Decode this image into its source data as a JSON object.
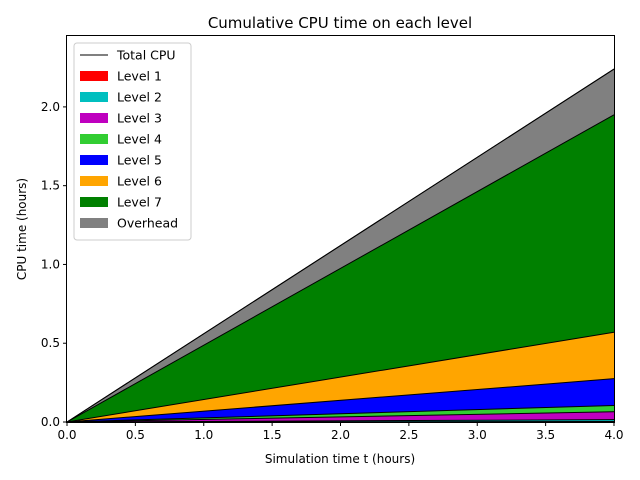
{
  "chart_data": {
    "type": "area",
    "title": "Cumulative CPU time on each level",
    "xlabel": "Simulation time t (hours)",
    "ylabel": "CPU time (hours)",
    "xlim": [
      0,
      4.0
    ],
    "ylim": [
      0,
      2.45
    ],
    "xticks": [
      "0.0",
      "0.5",
      "1.0",
      "1.5",
      "2.0",
      "2.5",
      "3.0",
      "3.5",
      "4.0"
    ],
    "yticks": [
      "0.0",
      "0.5",
      "1.0",
      "1.5",
      "2.0"
    ],
    "grid": false,
    "legend_position": "top-left",
    "x": [
      0,
      4.0
    ],
    "total_line": {
      "name": "Total CPU",
      "color": "#000000",
      "values": [
        0,
        2.24
      ]
    },
    "series": [
      {
        "name": "Level 1",
        "color": "#ff0000",
        "values": [
          0,
          0.003
        ]
      },
      {
        "name": "Level 2",
        "color": "#00bfbf",
        "values": [
          0,
          0.012
        ]
      },
      {
        "name": "Level 3",
        "color": "#bf00bf",
        "values": [
          0,
          0.05
        ]
      },
      {
        "name": "Level 4",
        "color": "#32cd32",
        "values": [
          0,
          0.04
        ]
      },
      {
        "name": "Level 5",
        "color": "#0000ff",
        "values": [
          0,
          0.17
        ]
      },
      {
        "name": "Level 6",
        "color": "#ffa500",
        "values": [
          0,
          0.295
        ]
      },
      {
        "name": "Level 7",
        "color": "#008000",
        "values": [
          0,
          1.38
        ]
      },
      {
        "name": "Overhead",
        "color": "#808080",
        "values": [
          0,
          0.29
        ]
      }
    ]
  }
}
